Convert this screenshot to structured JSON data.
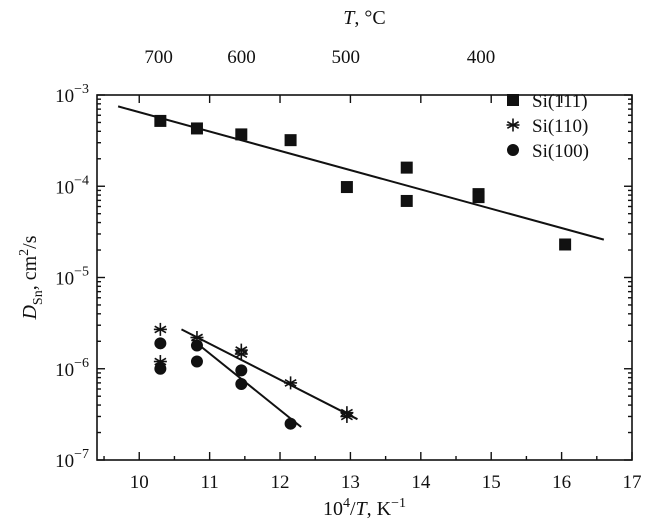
{
  "chart_data": {
    "type": "scatter",
    "title": "",
    "xlabel": "10^4/T, K^-1",
    "ylabel": "D_Sn, cm^2/s",
    "top_axis_label": "T, °C",
    "xlim": [
      9.4,
      17
    ],
    "ylim": [
      1e-07,
      0.001
    ],
    "y_scale": "log",
    "x_ticks": [
      10,
      11,
      12,
      13,
      14,
      15,
      16,
      17
    ],
    "y_ticks": [
      1e-07,
      1e-06,
      1e-05,
      0.0001,
      0.001
    ],
    "top_ticks_celsius": [
      700,
      600,
      500,
      400
    ],
    "legend_position": "top-right",
    "series": [
      {
        "name": "Si(111)",
        "marker": "square",
        "points": [
          [
            10.3,
            0.00052
          ],
          [
            10.82,
            0.00043
          ],
          [
            11.45,
            0.00037
          ],
          [
            12.15,
            0.00032
          ],
          [
            12.95,
            9.8e-05
          ],
          [
            13.8,
            0.00016
          ],
          [
            13.8,
            6.9e-05
          ],
          [
            14.82,
            8.2e-05
          ],
          [
            14.82,
            7.6e-05
          ],
          [
            16.05,
            2.3e-05
          ]
        ],
        "fit": [
          [
            9.7,
            0.00075
          ],
          [
            16.6,
            2.6e-05
          ]
        ]
      },
      {
        "name": "Si(110)",
        "marker": "asterisk",
        "points": [
          [
            10.3,
            2.7e-06
          ],
          [
            10.3,
            1.2e-06
          ],
          [
            10.82,
            2.2e-06
          ],
          [
            11.45,
            1.6e-06
          ],
          [
            11.45,
            1.45e-06
          ],
          [
            12.15,
            7e-07
          ],
          [
            12.95,
            3.3e-07
          ],
          [
            12.95,
            3e-07
          ]
        ],
        "fit": [
          [
            10.6,
            2.7e-06
          ],
          [
            13.1,
            2.8e-07
          ]
        ]
      },
      {
        "name": "Si(100)",
        "marker": "circle",
        "points": [
          [
            10.3,
            1.9e-06
          ],
          [
            10.3,
            1e-06
          ],
          [
            10.82,
            1.8e-06
          ],
          [
            10.82,
            1.2e-06
          ],
          [
            11.45,
            9.6e-07
          ],
          [
            11.45,
            6.8e-07
          ],
          [
            12.15,
            2.5e-07
          ]
        ],
        "fit": [
          [
            10.75,
            2.1e-06
          ],
          [
            12.3,
            2.3e-07
          ]
        ]
      }
    ]
  }
}
